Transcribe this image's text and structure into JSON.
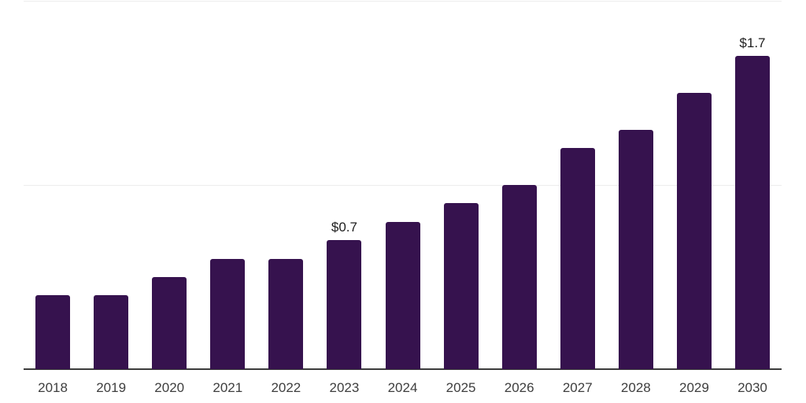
{
  "chart_data": {
    "type": "bar",
    "categories": [
      "2018",
      "2019",
      "2020",
      "2021",
      "2022",
      "2023",
      "2024",
      "2025",
      "2026",
      "2027",
      "2028",
      "2029",
      "2030"
    ],
    "values": [
      0.4,
      0.4,
      0.5,
      0.6,
      0.6,
      0.7,
      0.8,
      0.9,
      1.0,
      1.2,
      1.3,
      1.5,
      1.7
    ],
    "data_labels": [
      "",
      "",
      "",
      "",
      "",
      "$0.7",
      "",
      "",
      "",
      "",
      "",
      "",
      "$1.7"
    ],
    "ylim": [
      0,
      2
    ],
    "gridline_values": [
      1,
      2
    ],
    "grid": "horizontal",
    "legend_position": "none",
    "colors": {
      "bar": "#36124e",
      "gridline": "#ededed",
      "axis_line": "#3c3c3c",
      "axis_label": "#3e3e3e",
      "data_label": "#1e1e1e",
      "background": "#ffffff"
    }
  }
}
